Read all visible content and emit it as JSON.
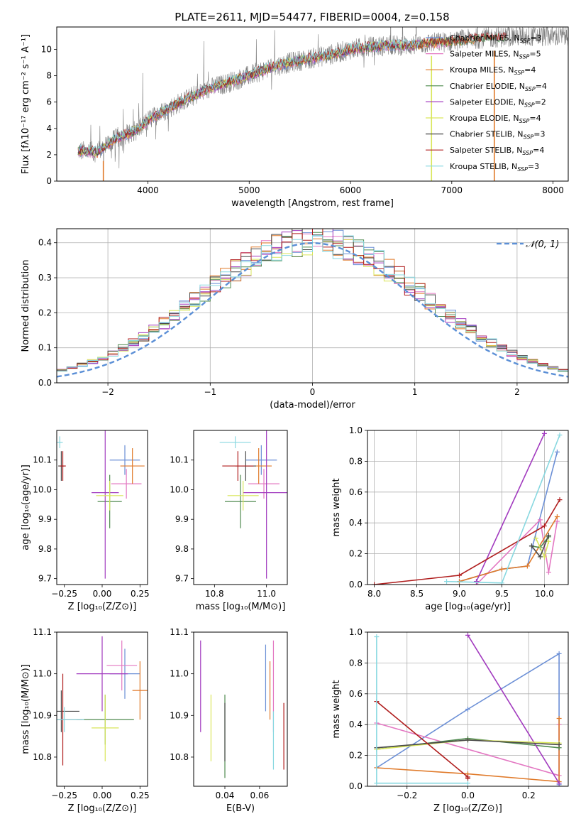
{
  "figure": {
    "title": "PLATE=2611, MJD=54477, FIBERID=0004, z=0.158"
  },
  "colors": {
    "data_spectrum": "#808080",
    "gaussian": "#5b8fd6"
  },
  "models": [
    {
      "name": "Chabrier MILES",
      "nssp": "3",
      "color": "#6b8fd6"
    },
    {
      "name": "Salpeter MILES",
      "nssp": "5",
      "color": "#e377c2"
    },
    {
      "name": "Kroupa MILES",
      "nssp": "4",
      "color": "#e07a2a"
    },
    {
      "name": "Chabrier ELODIE",
      "nssp": "4",
      "color": "#4f8a4f"
    },
    {
      "name": "Salpeter ELODIE",
      "nssp": "2",
      "color": "#a23bbf"
    },
    {
      "name": "Kroupa ELODIE",
      "nssp": "4",
      "color": "#d9e65a"
    },
    {
      "name": "Chabrier STELIB",
      "nssp": "3",
      "color": "#4a4a4a"
    },
    {
      "name": "Salpeter STELIB",
      "nssp": "4",
      "color": "#b01e1e"
    },
    {
      "name": "Kroupa STELIB",
      "nssp": "3",
      "color": "#88d8e0"
    }
  ],
  "chart_data": [
    {
      "id": "spectrum",
      "type": "line",
      "xlabel": "wavelength [Angstrom, rest frame]",
      "ylabel": "Flux [fλ10⁻¹⁷ erg cm⁻² s⁻¹ A⁻¹]",
      "xlim": [
        3100,
        8150
      ],
      "ylim": [
        0,
        11.7
      ],
      "xticks": [
        "4000",
        "5000",
        "6000",
        "7000",
        "8000"
      ],
      "yticks": [
        "0",
        "2",
        "4",
        "6",
        "8",
        "10"
      ],
      "continuum_x": [
        3300,
        3500,
        3700,
        3900,
        4000,
        4200,
        4400,
        4600,
        4800,
        5000,
        5200,
        5400,
        5600,
        5800,
        6000,
        6200,
        6400,
        6600,
        6800,
        7000,
        7200,
        7400,
        7600
      ],
      "continuum_y": [
        2.3,
        2.2,
        3.3,
        3.9,
        4.6,
        5.5,
        6.3,
        7.0,
        7.5,
        8.0,
        8.6,
        9.0,
        9.3,
        9.6,
        10.0,
        10.2,
        10.3,
        10.3,
        10.5,
        10.6,
        10.8,
        10.9,
        11.0
      ],
      "legend": "upper right"
    },
    {
      "id": "residual_distribution",
      "type": "line",
      "xlabel": "(data-model)/error",
      "ylabel": "Normed distribution",
      "xlim": [
        -2.5,
        2.5
      ],
      "ylim": [
        0,
        0.44
      ],
      "xticks": [
        "−2",
        "−1",
        "0",
        "1",
        "2"
      ],
      "yticks": [
        "0.0",
        "0.1",
        "0.2",
        "0.3",
        "0.4"
      ],
      "gaussian_label": "𝒩(0, 1)",
      "bin_width": 0.1,
      "grid": true,
      "legend": "upper right"
    },
    {
      "id": "age_vs_Z",
      "type": "scatter",
      "xlabel": "Z [log₁₀(Z/Z⊙)]",
      "ylabel": "age  [log₁₀(age/yr)]",
      "xlim": [
        -0.3,
        0.3
      ],
      "ylim": [
        9.68,
        10.2
      ],
      "xticks": [
        "−0.25",
        "0.00",
        "0.25"
      ],
      "yticks": [
        "9.7",
        "9.8",
        "9.9",
        "10.0",
        "10.1"
      ],
      "points": [
        {
          "model": 0,
          "x": 0.15,
          "y": 10.1,
          "xerr": 0.1,
          "yerr": 0.05
        },
        {
          "model": 1,
          "x": 0.16,
          "y": 10.02,
          "xerr": 0.1,
          "yerr": 0.05
        },
        {
          "model": 2,
          "x": 0.2,
          "y": 10.08,
          "xerr": 0.08,
          "yerr": 0.06
        },
        {
          "model": 3,
          "x": 0.05,
          "y": 9.96,
          "xerr": 0.08,
          "yerr": 0.09
        },
        {
          "model": 4,
          "x": 0.02,
          "y": 9.99,
          "xerr": 0.09,
          "yerr": 0.29
        },
        {
          "model": 5,
          "x": 0.05,
          "y": 9.98,
          "xerr": 0.09,
          "yerr": 0.05
        },
        {
          "model": 6,
          "x": -0.27,
          "y": 10.08,
          "xerr": 0.02,
          "yerr": 0.05
        },
        {
          "model": 7,
          "x": -0.26,
          "y": 10.08,
          "xerr": 0.02,
          "yerr": 0.05
        },
        {
          "model": 8,
          "x": -0.28,
          "y": 10.16,
          "xerr": 0.02,
          "yerr": 0.02
        }
      ]
    },
    {
      "id": "age_vs_mass",
      "type": "scatter",
      "xlabel": "mass [log₁₀(M/M⊙)]",
      "ylabel": "",
      "xlim": [
        10.72,
        11.08
      ],
      "ylim": [
        9.68,
        10.2
      ],
      "xticks": [
        "10.8",
        "11.0"
      ],
      "yticks": [
        "9.7",
        "9.8",
        "9.9",
        "10.0",
        "10.1"
      ],
      "points": [
        {
          "model": 0,
          "x": 10.98,
          "y": 10.1,
          "xerr": 0.06,
          "yerr": 0.05
        },
        {
          "model": 1,
          "x": 10.99,
          "y": 10.02,
          "xerr": 0.06,
          "yerr": 0.05
        },
        {
          "model": 2,
          "x": 10.97,
          "y": 10.08,
          "xerr": 0.05,
          "yerr": 0.06
        },
        {
          "model": 3,
          "x": 10.9,
          "y": 9.96,
          "xerr": 0.06,
          "yerr": 0.09
        },
        {
          "model": 4,
          "x": 11.0,
          "y": 9.99,
          "xerr": 0.09,
          "yerr": 0.29
        },
        {
          "model": 5,
          "x": 10.91,
          "y": 9.98,
          "xerr": 0.06,
          "yerr": 0.05
        },
        {
          "model": 6,
          "x": 10.92,
          "y": 10.08,
          "xerr": 0.04,
          "yerr": 0.05
        },
        {
          "model": 7,
          "x": 10.89,
          "y": 10.08,
          "xerr": 0.06,
          "yerr": 0.05
        },
        {
          "model": 8,
          "x": 10.88,
          "y": 10.16,
          "xerr": 0.06,
          "yerr": 0.02
        }
      ]
    },
    {
      "id": "massweight_vs_age",
      "type": "line",
      "xlabel": "age  [log₁₀(age/yr)]",
      "ylabel": "mass weight",
      "xlim": [
        7.92,
        10.28
      ],
      "ylim": [
        0,
        1
      ],
      "xticks": [
        "8.0",
        "8.5",
        "9.0",
        "9.5",
        "10.0"
      ],
      "yticks": [
        "0.0",
        "0.2",
        "0.4",
        "0.6",
        "0.8",
        "1.0"
      ],
      "grid": true,
      "series": [
        {
          "model": 0,
          "x": [
            9.0,
            9.5,
            9.8,
            10.15
          ],
          "y": [
            0.02,
            0.1,
            0.12,
            0.86
          ]
        },
        {
          "model": 1,
          "x": [
            9.2,
            9.95,
            10.05,
            10.15
          ],
          "y": [
            0.0,
            0.42,
            0.08,
            0.41
          ]
        },
        {
          "model": 2,
          "x": [
            9.0,
            9.5,
            9.8,
            10.15
          ],
          "y": [
            0.02,
            0.1,
            0.12,
            0.44
          ]
        },
        {
          "model": 3,
          "x": [
            9.85,
            9.95,
            10.05
          ],
          "y": [
            0.25,
            0.24,
            0.31
          ]
        },
        {
          "model": 4,
          "x": [
            9.2,
            10.0
          ],
          "y": [
            0.02,
            0.98
          ]
        },
        {
          "model": 5,
          "x": [
            9.9,
            10.0,
            10.05
          ],
          "y": [
            0.3,
            0.18,
            0.28
          ]
        },
        {
          "model": 6,
          "x": [
            9.85,
            9.95,
            10.05
          ],
          "y": [
            0.25,
            0.18,
            0.32
          ]
        },
        {
          "model": 7,
          "x": [
            8.0,
            9.0,
            10.0,
            10.18
          ],
          "y": [
            0.0,
            0.06,
            0.38,
            0.55
          ]
        },
        {
          "model": 8,
          "x": [
            8.85,
            9.5,
            10.18
          ],
          "y": [
            0.02,
            0.01,
            0.97
          ]
        }
      ]
    },
    {
      "id": "mass_vs_Z",
      "type": "scatter",
      "xlabel": "Z [log₁₀(Z/Z⊙)]",
      "ylabel": "mass [log₁₀(M/M⊙)]",
      "xlim": [
        -0.3,
        0.3
      ],
      "ylim": [
        10.73,
        11.1
      ],
      "xticks": [
        "−0.25",
        "0.00",
        "0.25"
      ],
      "yticks": [
        "10.8",
        "10.9",
        "11.0",
        "11.1"
      ],
      "points": [
        {
          "model": 0,
          "x": 0.15,
          "y": 11.0,
          "xerr": 0.1,
          "yerr": 0.06
        },
        {
          "model": 1,
          "x": 0.13,
          "y": 11.02,
          "xerr": 0.1,
          "yerr": 0.06
        },
        {
          "model": 2,
          "x": 0.25,
          "y": 10.96,
          "xerr": 0.05,
          "yerr": 0.07
        },
        {
          "model": 3,
          "x": 0.02,
          "y": 10.89,
          "xerr": 0.19,
          "yerr": 0.06
        },
        {
          "model": 4,
          "x": 0.0,
          "y": 11.0,
          "xerr": 0.17,
          "yerr": 0.09
        },
        {
          "model": 5,
          "x": 0.02,
          "y": 10.87,
          "xerr": 0.09,
          "yerr": 0.08
        },
        {
          "model": 6,
          "x": -0.27,
          "y": 10.91,
          "xerr": 0.12,
          "yerr": 0.05
        },
        {
          "model": 7,
          "x": -0.26,
          "y": 10.89,
          "xerr": 0.13,
          "yerr": 0.11
        },
        {
          "model": 8,
          "x": -0.25,
          "y": 10.89,
          "xerr": 0.13,
          "yerr": 0.03
        }
      ]
    },
    {
      "id": "mass_vs_EBV",
      "type": "scatter",
      "xlabel": "E(B-V)",
      "ylabel": "",
      "xlim": [
        0.022,
        0.076
      ],
      "ylim": [
        10.73,
        11.1
      ],
      "xticks": [
        "0.04",
        "0.06"
      ],
      "yticks": [
        "10.8",
        "10.9",
        "11.0",
        "11.1"
      ],
      "points": [
        {
          "model": 0,
          "x": 0.0635,
          "y": 10.99,
          "yerr": 0.08
        },
        {
          "model": 1,
          "x": 0.068,
          "y": 10.97,
          "yerr": 0.11
        },
        {
          "model": 2,
          "x": 0.066,
          "y": 10.96,
          "yerr": 0.07
        },
        {
          "model": 3,
          "x": 0.04,
          "y": 10.85,
          "yerr": 0.1
        },
        {
          "model": 4,
          "x": 0.026,
          "y": 10.97,
          "yerr": 0.11
        },
        {
          "model": 5,
          "x": 0.032,
          "y": 10.87,
          "yerr": 0.08
        },
        {
          "model": 6,
          "x": 0.04,
          "y": 10.86,
          "yerr": 0.07
        },
        {
          "model": 7,
          "x": 0.074,
          "y": 10.85,
          "yerr": 0.08
        },
        {
          "model": 8,
          "x": 0.068,
          "y": 10.84,
          "yerr": 0.07
        }
      ]
    },
    {
      "id": "massweight_vs_Z",
      "type": "line",
      "xlabel": "Z [log₁₀(Z/Z⊙)]",
      "ylabel": "mass weight",
      "xlim": [
        -0.33,
        0.33
      ],
      "ylim": [
        0,
        1
      ],
      "xticks": [
        "−0.2",
        "0.0",
        "0.2"
      ],
      "yticks": [
        "0.0",
        "0.2",
        "0.4",
        "0.6",
        "0.8",
        "1.0"
      ],
      "grid": true,
      "series": [
        {
          "model": 0,
          "x": [
            -0.3,
            0.0,
            0.3,
            0.3
          ],
          "y": [
            0.12,
            0.5,
            0.86,
            0.01
          ]
        },
        {
          "model": 1,
          "x": [
            -0.3,
            0.3,
            0.3
          ],
          "y": [
            0.41,
            0.07,
            0.4
          ]
        },
        {
          "model": 2,
          "x": [
            -0.3,
            0.0,
            0.3,
            0.3
          ],
          "y": [
            0.12,
            0.08,
            0.03,
            0.44
          ]
        },
        {
          "model": 3,
          "x": [
            -0.3,
            0.0,
            0.3
          ],
          "y": [
            0.24,
            0.31,
            0.25
          ]
        },
        {
          "model": 4,
          "x": [
            0.0,
            0.3
          ],
          "y": [
            0.98,
            0.02
          ]
        },
        {
          "model": 5,
          "x": [
            -0.3,
            0.0,
            0.3
          ],
          "y": [
            0.24,
            0.3,
            0.28
          ]
        },
        {
          "model": 6,
          "x": [
            -0.3,
            0.0,
            0.3
          ],
          "y": [
            0.25,
            0.3,
            0.27
          ]
        },
        {
          "model": 7,
          "x": [
            -0.3,
            0.0,
            0.0
          ],
          "y": [
            0.55,
            0.06,
            0.05
          ]
        },
        {
          "model": 8,
          "x": [
            -0.3,
            -0.3,
            0.0
          ],
          "y": [
            0.97,
            0.02,
            0.02
          ]
        }
      ]
    }
  ]
}
